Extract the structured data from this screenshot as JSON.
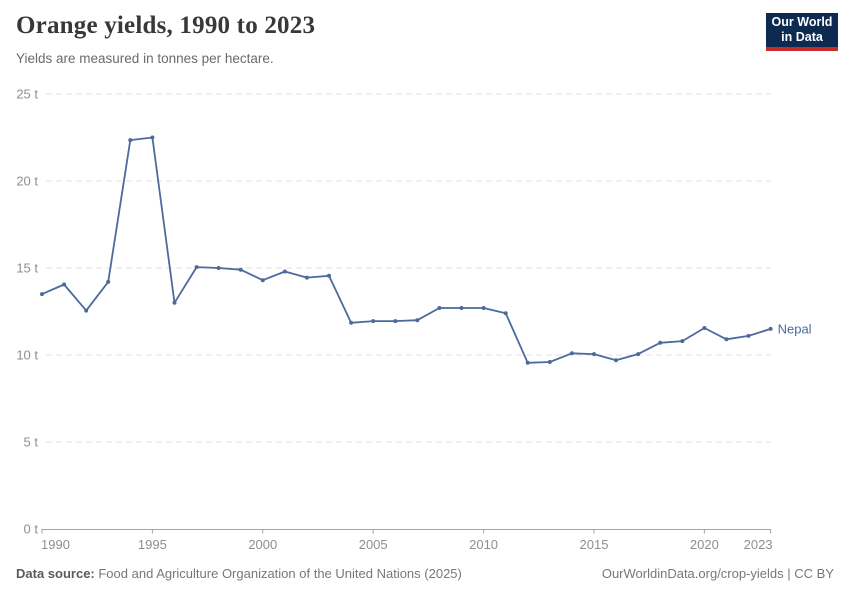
{
  "header": {
    "title": "Orange yields, 1990 to 2023",
    "subtitle": "Yields are measured in tonnes per hectare."
  },
  "logo": {
    "line1": "Our World",
    "line2": "in Data",
    "bg_color": "#0d2b51",
    "accent_color": "#c32e27"
  },
  "chart_data": {
    "type": "line",
    "title": "Orange yields, 1990 to 2023",
    "xlabel": "",
    "ylabel": "tonnes per hectare",
    "unit_suffix": " t",
    "ylim": [
      0,
      25
    ],
    "yticks": [
      0,
      5,
      10,
      15,
      20,
      25
    ],
    "xticks": [
      1990,
      1995,
      2000,
      2005,
      2010,
      2015,
      2020,
      2023
    ],
    "grid": true,
    "legend_position": "end-of-line",
    "grid_color": "#e2e2e2",
    "axis_color": "#a5a5a5",
    "tick_color": "#8f8f8f",
    "x": [
      1990,
      1991,
      1992,
      1993,
      1994,
      1995,
      1996,
      1997,
      1998,
      1999,
      2000,
      2001,
      2002,
      2003,
      2004,
      2005,
      2006,
      2007,
      2008,
      2009,
      2010,
      2011,
      2012,
      2013,
      2014,
      2015,
      2016,
      2017,
      2018,
      2019,
      2020,
      2021,
      2022,
      2023
    ],
    "series": [
      {
        "name": "Nepal",
        "color": "#4C6A9C",
        "values": [
          13.5,
          14.05,
          12.55,
          14.2,
          22.35,
          22.5,
          13.0,
          15.05,
          15.0,
          14.9,
          14.3,
          14.8,
          14.45,
          14.55,
          11.85,
          11.95,
          11.95,
          12.0,
          12.7,
          12.7,
          12.7,
          12.4,
          9.55,
          9.6,
          10.1,
          10.05,
          9.7,
          10.05,
          10.7,
          10.8,
          11.55,
          10.9,
          11.1,
          11.5
        ]
      }
    ]
  },
  "footer": {
    "source_label": "Data source:",
    "source_text": " Food and Agriculture Organization of the United Nations (2025)",
    "right_text": "OurWorldinData.org/crop-yields | CC BY"
  }
}
